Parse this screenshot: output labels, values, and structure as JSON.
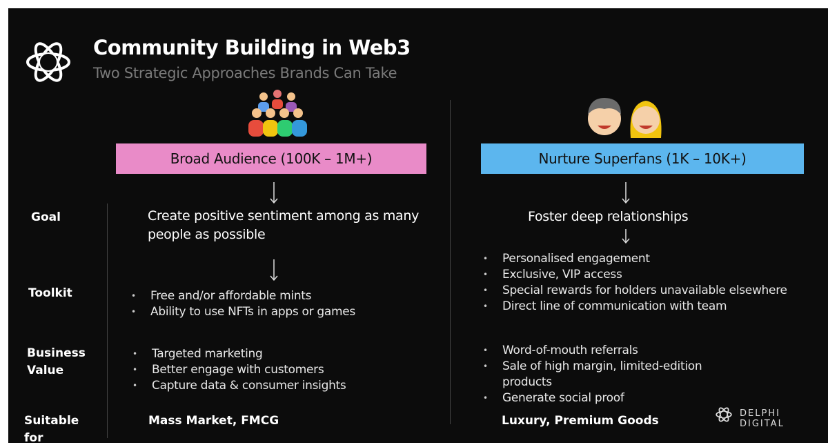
{
  "header": {
    "title": "Community Building in Web3",
    "subtitle": "Two Strategic Approaches Brands Can Take"
  },
  "row_labels": [
    "Goal",
    "Toolkit",
    "Business Value",
    "Suitable for"
  ],
  "columns": [
    {
      "label": "Broad Audience (100K – 1M+)",
      "goal": "Create positive sentiment among as many people as possible",
      "toolkit": [
        "Free and/or affordable mints",
        "Ability to use NFTs in apps or games"
      ],
      "business_value": [
        "Targeted marketing",
        "Better engage with customers",
        "Capture data & consumer insights"
      ],
      "suitable_for": "Mass Market, FMCG"
    },
    {
      "label": "Nurture Superfans (1K – 10K+)",
      "goal": "Foster deep relationships",
      "toolkit": [
        "Personalised engagement",
        "Exclusive, VIP access",
        "Special rewards for holders unavailable elsewhere",
        "Direct line of communication with team"
      ],
      "business_value": [
        "Word-of-mouth referrals",
        "Sale of high margin, limited-edition products",
        "Generate social proof"
      ],
      "suitable_for": "Luxury, Premium Goods"
    }
  ],
  "brand": "DELPHI DIGITAL"
}
